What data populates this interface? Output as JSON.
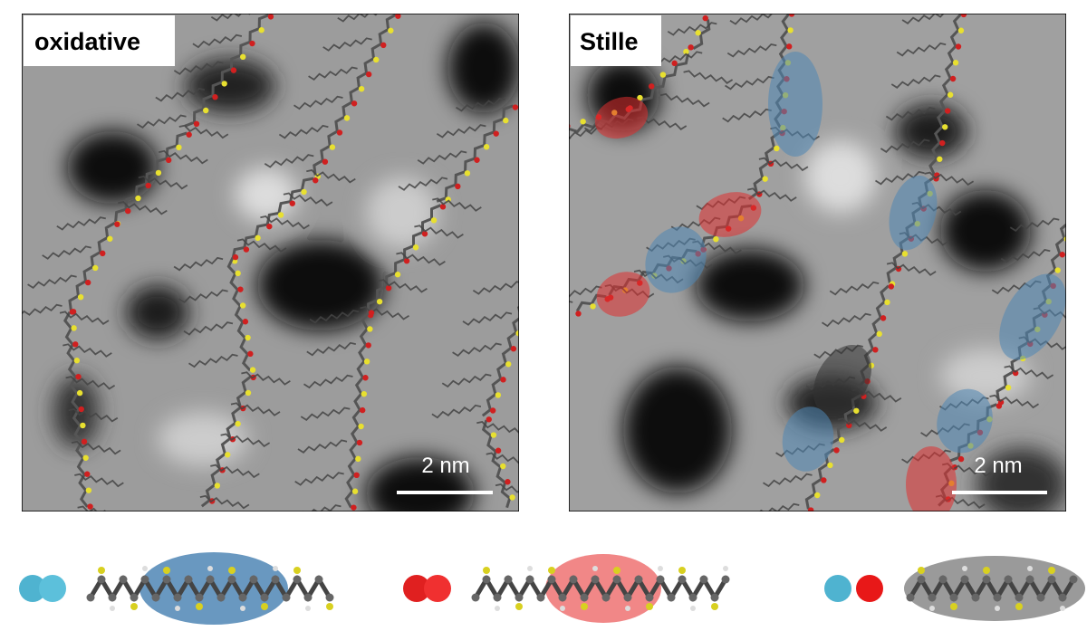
{
  "panels": [
    {
      "label": "oxidative",
      "scale_bar": "2 nm"
    },
    {
      "label": "Stille",
      "scale_bar": "2 nm"
    }
  ]
}
